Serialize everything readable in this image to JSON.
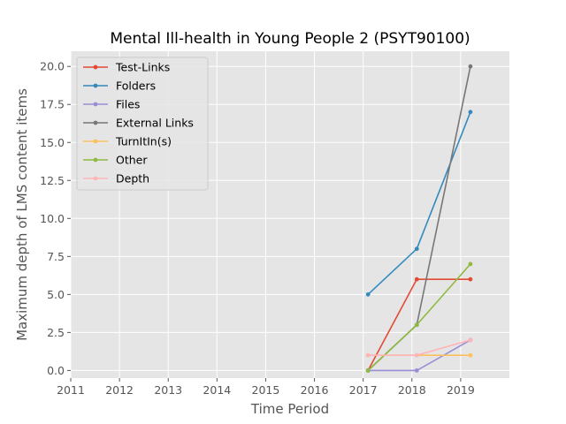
{
  "chart_data": {
    "type": "line",
    "title": "Mental Ill-health in Young People 2 (PSYT90100)",
    "xlabel": "Time Period",
    "ylabel": "Maximum depth of LMS content items",
    "xlim": [
      2011,
      2020
    ],
    "ylim": [
      -0.5,
      21
    ],
    "xticks": [
      "2011",
      "2012",
      "2013",
      "2014",
      "2015",
      "2016",
      "2017",
      "2018",
      "2019"
    ],
    "yticks": [
      "0.0",
      "2.5",
      "5.0",
      "7.5",
      "10.0",
      "12.5",
      "15.0",
      "17.5",
      "20.0"
    ],
    "grid": true,
    "legend": "top-left",
    "x": [
      2017.1,
      2018.1,
      2019.2
    ],
    "series": [
      {
        "name": "Test-Links",
        "color": "#E24A33",
        "values": [
          0,
          6,
          6
        ]
      },
      {
        "name": "Folders",
        "color": "#348ABD",
        "values": [
          5,
          8,
          17
        ]
      },
      {
        "name": "Files",
        "color": "#988ED5",
        "values": [
          0,
          0,
          2
        ]
      },
      {
        "name": "External Links",
        "color": "#777777",
        "values": [
          0,
          3,
          20
        ]
      },
      {
        "name": "TurnItIn(s)",
        "color": "#FBC15E",
        "values": [
          1,
          1,
          1
        ]
      },
      {
        "name": "Other",
        "color": "#8EBA42",
        "values": [
          0,
          3,
          7
        ]
      },
      {
        "name": "Depth",
        "color": "#FFB5B8",
        "values": [
          1,
          1,
          2
        ]
      }
    ]
  }
}
